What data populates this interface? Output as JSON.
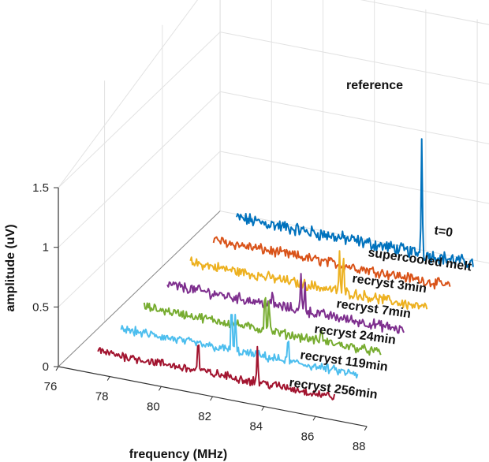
{
  "chart_data": {
    "type": "line",
    "projection": "3d-waterfall",
    "title": "",
    "xlabel": "frequency (MHz)",
    "ylabel": "",
    "zlabel": "amplitude (uV)",
    "xlim": [
      76,
      88
    ],
    "zlim": [
      0,
      1.5
    ],
    "x_ticks": [
      "76",
      "78",
      "80",
      "82",
      "84",
      "86",
      "88"
    ],
    "z_ticks": [
      "0",
      "0.5",
      "1",
      "1.5"
    ],
    "grid": true,
    "series": [
      {
        "name": "reference",
        "color": "#0072BD",
        "noise": 0.09,
        "peaks": [
          {
            "x": 84.2,
            "amp": 0.95
          }
        ]
      },
      {
        "name": "t=0",
        "color": "#D95319",
        "noise": 0.07,
        "peaks": []
      },
      {
        "name": "supercooled melt",
        "color": "#EDB120",
        "noise": 0.07,
        "peaks": [
          {
            "x": 82.8,
            "amp": 0.32
          },
          {
            "x": 82.95,
            "amp": 0.3
          }
        ]
      },
      {
        "name": "recryst 3min",
        "color": "#7E2F8E",
        "noise": 0.07,
        "peaks": [
          {
            "x": 82.2,
            "amp": 0.3
          },
          {
            "x": 82.35,
            "amp": 0.26
          },
          {
            "x": 81.1,
            "amp": 0.1
          }
        ]
      },
      {
        "name": "recryst 7min",
        "color": "#77AC30",
        "noise": 0.06,
        "peaks": [
          {
            "x": 81.7,
            "amp": 0.38
          },
          {
            "x": 81.85,
            "amp": 0.3
          },
          {
            "x": 83.9,
            "amp": 0.12
          }
        ]
      },
      {
        "name": "recryst 24min",
        "color": "#4DBEEE",
        "noise": 0.06,
        "peaks": [
          {
            "x": 81.3,
            "amp": 0.42
          },
          {
            "x": 81.45,
            "amp": 0.3
          },
          {
            "x": 83.5,
            "amp": 0.2
          }
        ]
      },
      {
        "name": "recryst 119min",
        "color": "#A2142F",
        "noise": 0.06,
        "peaks": [
          {
            "x": 80.9,
            "amp": 0.3
          },
          {
            "x": 83.2,
            "amp": 0.3
          }
        ]
      },
      {
        "name": "recryst 256min",
        "color": "#A2142F",
        "noise": 0.06,
        "peaks": [],
        "label_only": true
      }
    ]
  }
}
